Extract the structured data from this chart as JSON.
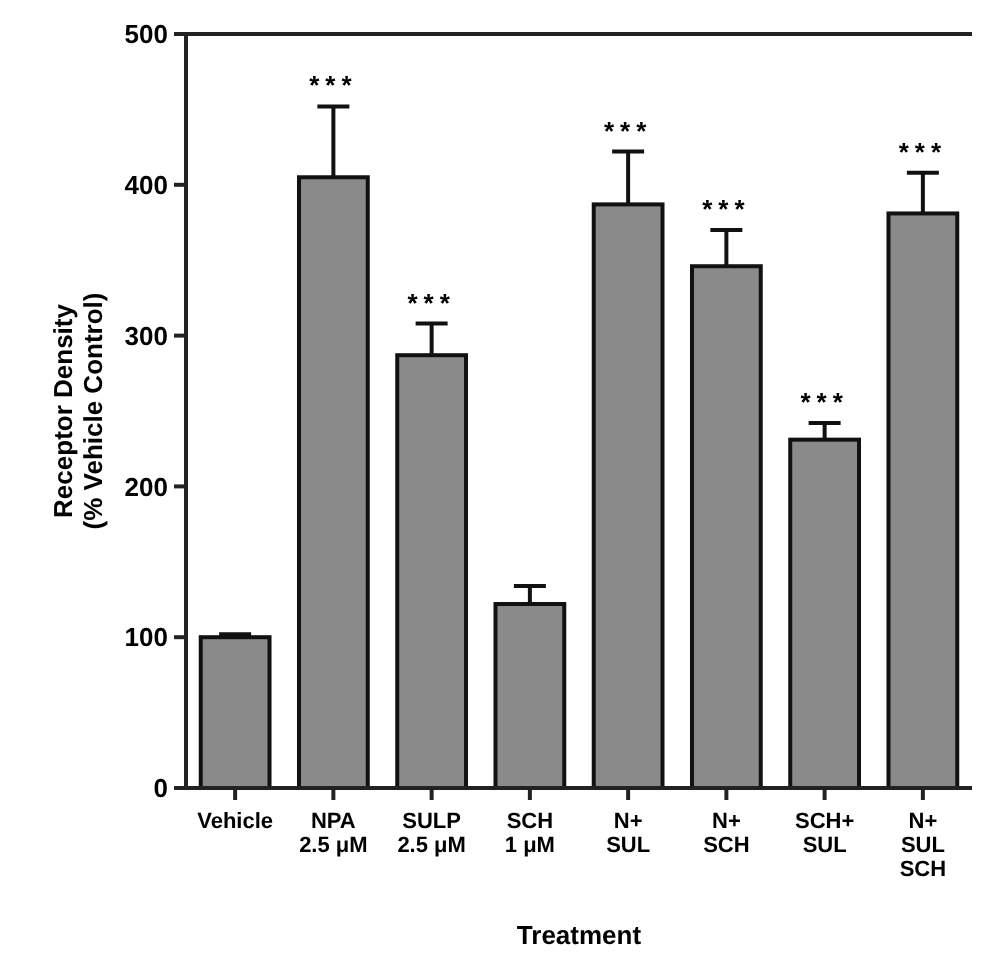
{
  "chart_data": {
    "type": "bar",
    "xlabel": "Treatment",
    "ylabel": "Receptor Density\n(% Vehicle Control)",
    "categories": [
      "Vehicle",
      "NPA\n2.5 μM",
      "SULP\n2.5 μM",
      "SCH\n1 μM",
      "N+\nSUL",
      "N+\nSCH",
      "SCH+\nSUL",
      "N+\nSUL\nSCH"
    ],
    "values": [
      100,
      405,
      287,
      122,
      387,
      346,
      231,
      381
    ],
    "errors": [
      2,
      47,
      21,
      12,
      35,
      24,
      11,
      27
    ],
    "color": "#8a8a8a",
    "ylim": [
      0,
      500
    ],
    "yticks": [
      0,
      100,
      200,
      300,
      400,
      500
    ],
    "annotations": [
      {
        "text": "***",
        "x": "NPA\n2.5 μM",
        "y": 452
      },
      {
        "text": "***",
        "x": "SULP\n2.5 μM",
        "y": 308
      },
      {
        "text": "***",
        "x": "N+\nSUL",
        "y": 422
      },
      {
        "text": "***",
        "x": "N+\nSCH",
        "y": 370
      },
      {
        "text": "***",
        "x": "SCH+\nSUL",
        "y": 242
      },
      {
        "text": "***",
        "x": "N+\nSUL\nSCH",
        "y": 408
      }
    ]
  }
}
